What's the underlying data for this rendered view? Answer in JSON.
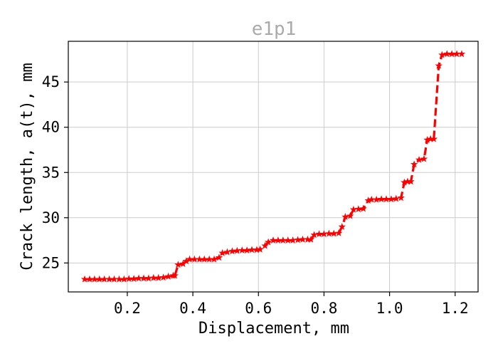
{
  "chart_data": {
    "type": "line",
    "title": "e1p1",
    "xlabel": "Displacement, mm",
    "ylabel": "Crack length, a(t), mm",
    "xlim": [
      0.02,
      1.27
    ],
    "ylim": [
      21.8,
      49.5
    ],
    "xticks": [
      0.2,
      0.4,
      0.6,
      0.8,
      1.0,
      1.2
    ],
    "xtick_labels": [
      "0.2",
      "0.4",
      "0.6",
      "0.8",
      "1.0",
      "1.2"
    ],
    "yticks": [
      25,
      30,
      35,
      40,
      45
    ],
    "ytick_labels": [
      "25",
      "30",
      "35",
      "40",
      "45"
    ],
    "grid": true,
    "legend": "none",
    "colors": {
      "series": "#ff0000",
      "title": "#aaaaaa",
      "grid": "#cccccc"
    },
    "series": [
      {
        "line_style": "dashed",
        "marker": "star",
        "x": [
          0.07,
          0.085,
          0.1,
          0.115,
          0.13,
          0.145,
          0.16,
          0.175,
          0.19,
          0.205,
          0.22,
          0.235,
          0.25,
          0.265,
          0.28,
          0.295,
          0.31,
          0.325,
          0.34,
          0.345,
          0.355,
          0.37,
          0.38,
          0.39,
          0.405,
          0.42,
          0.435,
          0.45,
          0.465,
          0.48,
          0.49,
          0.505,
          0.52,
          0.535,
          0.55,
          0.565,
          0.58,
          0.595,
          0.605,
          0.62,
          0.63,
          0.645,
          0.66,
          0.675,
          0.69,
          0.705,
          0.72,
          0.735,
          0.75,
          0.76,
          0.77,
          0.785,
          0.8,
          0.815,
          0.83,
          0.845,
          0.855,
          0.865,
          0.88,
          0.89,
          0.905,
          0.92,
          0.935,
          0.945,
          0.96,
          0.975,
          0.99,
          1.005,
          1.02,
          1.035,
          1.045,
          1.055,
          1.065,
          1.075,
          1.09,
          1.105,
          1.115,
          1.125,
          1.135,
          1.15,
          1.16,
          1.175,
          1.19,
          1.205,
          1.22
        ],
        "y": [
          23.2,
          23.2,
          23.2,
          23.2,
          23.2,
          23.2,
          23.2,
          23.2,
          23.2,
          23.25,
          23.25,
          23.3,
          23.3,
          23.3,
          23.35,
          23.35,
          23.4,
          23.5,
          23.6,
          23.6,
          24.8,
          24.9,
          25.2,
          25.4,
          25.4,
          25.4,
          25.4,
          25.4,
          25.4,
          25.6,
          26.1,
          26.2,
          26.3,
          26.35,
          26.4,
          26.4,
          26.45,
          26.45,
          26.5,
          26.9,
          27.3,
          27.5,
          27.5,
          27.5,
          27.5,
          27.5,
          27.55,
          27.6,
          27.6,
          27.6,
          28.1,
          28.2,
          28.2,
          28.25,
          28.25,
          28.3,
          29.0,
          30.1,
          30.2,
          30.9,
          30.95,
          31.0,
          31.9,
          32.0,
          32.0,
          32.05,
          32.05,
          32.05,
          32.1,
          32.2,
          33.9,
          34.0,
          34.0,
          35.9,
          36.4,
          36.5,
          38.6,
          38.7,
          38.7,
          46.8,
          48.0,
          48.1,
          48.1,
          48.1,
          48.1
        ]
      }
    ]
  }
}
